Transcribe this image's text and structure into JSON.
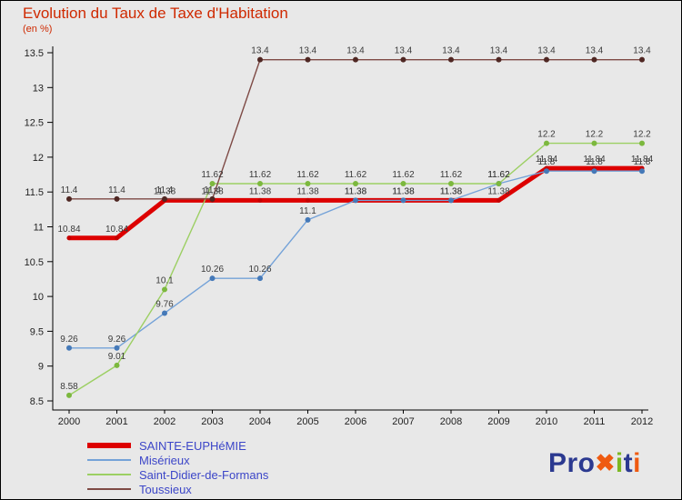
{
  "header": {
    "title": "Evolution du Taux de Taxe d'Habitation",
    "subtitle": "(en %)"
  },
  "chart_data": {
    "type": "line",
    "title": "Evolution du Taux de Taxe d'Habitation",
    "ylabel": "en %",
    "xlabel": "",
    "grid": false,
    "legend_position": "bottom-left",
    "ylim": [
      8.5,
      13.5
    ],
    "yticks": [
      8.5,
      9,
      9.5,
      10,
      10.5,
      11,
      11.5,
      12,
      12.5,
      13,
      13.5
    ],
    "x": [
      2000,
      2001,
      2002,
      2003,
      2004,
      2005,
      2006,
      2007,
      2008,
      2009,
      2010,
      2011,
      2012
    ],
    "series": [
      {
        "name": "SAINTE-EUPHéMIE",
        "color": "#dd0000",
        "marker": "#c40000",
        "width": 5,
        "marker_r": 2.5,
        "values": [
          10.84,
          10.84,
          11.38,
          11.38,
          11.38,
          11.38,
          11.38,
          11.38,
          11.38,
          11.38,
          11.84,
          11.84,
          11.84
        ]
      },
      {
        "name": "Misérieux",
        "color": "#74a2d8",
        "marker": "#4579b8",
        "width": 1.4,
        "marker_r": 3,
        "values": [
          9.26,
          9.26,
          9.76,
          10.26,
          10.26,
          11.1,
          11.38,
          11.38,
          11.38,
          11.62,
          11.8,
          11.8,
          11.8
        ]
      },
      {
        "name": "Saint-Didier-de-Formans",
        "color": "#9ccf63",
        "marker": "#7cb83e",
        "width": 1.4,
        "marker_r": 3,
        "values": [
          8.58,
          9.01,
          10.1,
          11.62,
          11.62,
          11.62,
          11.62,
          11.62,
          11.62,
          11.62,
          12.2,
          12.2,
          12.2
        ]
      },
      {
        "name": "Toussieux",
        "color": "#7e4a45",
        "marker": "#4f2723",
        "width": 1.4,
        "marker_r": 3,
        "values": [
          11.4,
          11.4,
          11.4,
          11.4,
          13.4,
          13.4,
          13.4,
          13.4,
          13.4,
          13.4,
          13.4,
          13.4,
          13.4
        ]
      }
    ]
  },
  "logo": {
    "parts": [
      {
        "text": "Pro",
        "color": "#2b3990",
        "small": false
      },
      {
        "text": "✖",
        "color": "#ef5a10",
        "small": true
      },
      {
        "text": "i",
        "color": "#7cb822",
        "small": false
      },
      {
        "text": "t",
        "color": "#2b3990",
        "small": false
      },
      {
        "text": "i",
        "color": "#ef5a10",
        "small": false
      }
    ]
  }
}
